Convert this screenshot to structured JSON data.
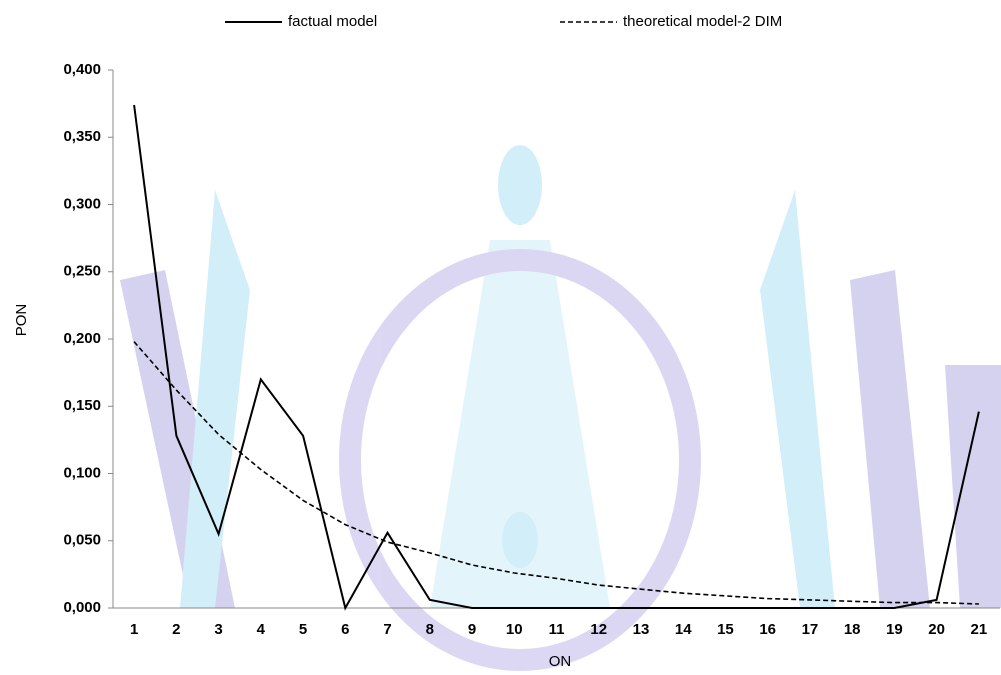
{
  "chart_data": {
    "type": "line",
    "x_label": "ON",
    "y_label": "PON",
    "categories": [
      "1",
      "2",
      "3",
      "4",
      "5",
      "6",
      "7",
      "8",
      "9",
      "10",
      "11",
      "12",
      "13",
      "14",
      "15",
      "16",
      "17",
      "18",
      "19",
      "20",
      "21"
    ],
    "series": [
      {
        "name": "factual model",
        "color": "#000000",
        "dash": false,
        "values": [
          0.374,
          0.128,
          0.055,
          0.17,
          0.128,
          0,
          0.056,
          0.006,
          0,
          0,
          0,
          0,
          0,
          0,
          0,
          0,
          0,
          0,
          0,
          0.006,
          0.146
        ]
      },
      {
        "name": "theoretical model-2 DIM",
        "color": "#000000",
        "dash": true,
        "values": [
          0.198,
          0.162,
          0.129,
          0.103,
          0.08,
          0.062,
          0.049,
          0.041,
          0.032,
          0.026,
          0.022,
          0.017,
          0.014,
          0.011,
          0.009,
          0.007,
          0.006,
          0.005,
          0.004,
          0.004,
          0.003
        ]
      }
    ],
    "ylim": [
      0,
      0.4
    ],
    "yticks": [
      {
        "value": 0,
        "label": "0,000"
      },
      {
        "value": 0.05,
        "label": "0,050"
      },
      {
        "value": 0.1,
        "label": "0,100"
      },
      {
        "value": 0.15,
        "label": "0,150"
      },
      {
        "value": 0.2,
        "label": "0,200"
      },
      {
        "value": 0.25,
        "label": "0,250"
      },
      {
        "value": 0.3,
        "label": "0,300"
      },
      {
        "value": 0.35,
        "label": "0,350"
      },
      {
        "value": 0.4,
        "label": "0,400"
      }
    ],
    "legend": "top"
  }
}
